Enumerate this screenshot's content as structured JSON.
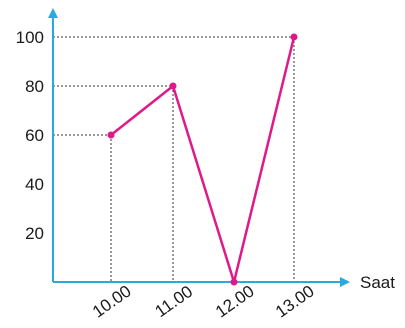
{
  "chart_data": {
    "type": "line",
    "title": "",
    "xlabel": "Saat",
    "ylabel": "",
    "categories": [
      "10.00",
      "11.00",
      "12.00",
      "13.00"
    ],
    "series": [
      {
        "values": [
          60,
          80,
          0,
          100
        ]
      }
    ],
    "yticks": [
      20,
      40,
      60,
      80,
      100
    ],
    "ylim": [
      0,
      110
    ],
    "grid": "dotted guide lines from each point to both axes",
    "legend": "none",
    "colors": {
      "axis": "#2aa8e0",
      "line": "#e0198a",
      "guides": "#333333"
    }
  }
}
